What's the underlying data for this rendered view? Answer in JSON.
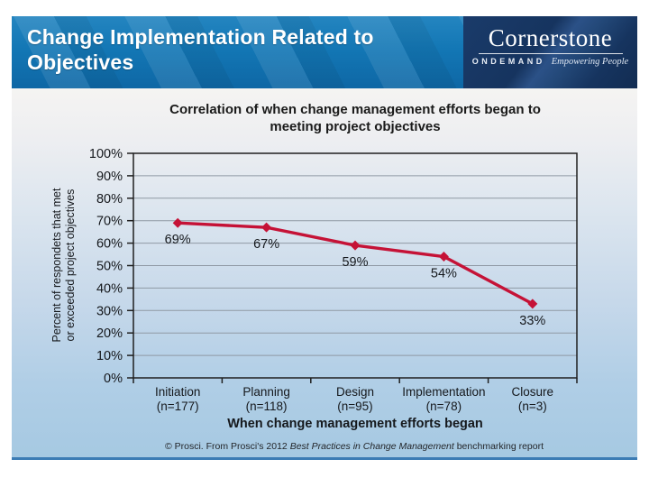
{
  "header": {
    "title": "Change Implementation Related to Objectives"
  },
  "logo": {
    "brand": "Cornerstone",
    "sub_brand": "ONDEMAND",
    "tagline": "Empowering People"
  },
  "chart_data": {
    "type": "line",
    "title": "Correlation of when change management efforts began to meeting project objectives",
    "categories": [
      "Initiation",
      "Planning",
      "Design",
      "Implementation",
      "Closure"
    ],
    "category_counts": [
      "(n=177)",
      "(n=118)",
      "(n=95)",
      "(n=78)",
      "(n=3)"
    ],
    "values": [
      69,
      67,
      59,
      54,
      33
    ],
    "data_labels": [
      "69%",
      "67%",
      "59%",
      "54%",
      "33%"
    ],
    "xlabel": "When change management efforts began",
    "ylabel": "Percent of respondets that met or exceeded project objectives",
    "ylabel_lines": [
      "Percent of respondets that met",
      "or exceeded project objectives"
    ],
    "ylim": [
      0,
      100
    ],
    "ytick_step": 10,
    "ytick_suffix": "%",
    "grid": true,
    "legend": "none",
    "colors": {
      "line": "#c51236",
      "marker": "#c51236",
      "grid": "#8f99a4",
      "axis": "#1f1f1f",
      "header_blue": "#1377b5",
      "logo_navy": "#16345f",
      "content_bottom_rule": "#3c7cb4"
    }
  },
  "footnote": {
    "prefix": "© Prosci. From Prosci's 2012 ",
    "italic": "Best Practices in Change Management",
    "suffix": " benchmarking report"
  }
}
